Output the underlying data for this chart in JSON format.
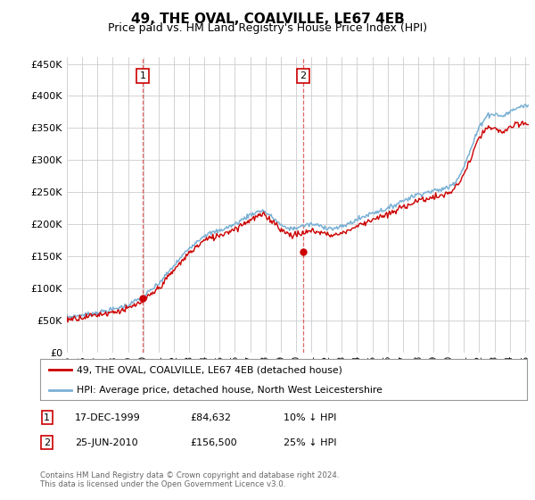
{
  "title": "49, THE OVAL, COALVILLE, LE67 4EB",
  "subtitle": "Price paid vs. HM Land Registry's House Price Index (HPI)",
  "title_fontsize": 11,
  "subtitle_fontsize": 9,
  "ylabel_ticks": [
    "£0",
    "£50K",
    "£100K",
    "£150K",
    "£200K",
    "£250K",
    "£300K",
    "£350K",
    "£400K",
    "£450K"
  ],
  "ytick_vals": [
    0,
    50000,
    100000,
    150000,
    200000,
    250000,
    300000,
    350000,
    400000,
    450000
  ],
  "ylim": [
    0,
    460000
  ],
  "xlim_start": 1995.0,
  "xlim_end": 2025.3,
  "price_paid_color": "#cc0000",
  "hpi_color": "#7ab0d4",
  "legend_label_price": "49, THE OVAL, COALVILLE, LE67 4EB (detached house)",
  "legend_label_hpi": "HPI: Average price, detached house, North West Leicestershire",
  "sale1_x": 1999.96,
  "sale1_y": 84632,
  "sale1_label": "1",
  "sale2_x": 2010.48,
  "sale2_y": 156500,
  "sale2_label": "2",
  "footer": "Contains HM Land Registry data © Crown copyright and database right 2024.\nThis data is licensed under the Open Government Licence v3.0.",
  "table_rows": [
    [
      "1",
      "17-DEC-1999",
      "£84,632",
      "10% ↓ HPI"
    ],
    [
      "2",
      "25-JUN-2010",
      "£156,500",
      "25% ↓ HPI"
    ]
  ],
  "background_color": "#ffffff",
  "grid_color": "#cccccc",
  "hpi_anchors": [
    [
      1995.0,
      55000
    ],
    [
      1996.0,
      58000
    ],
    [
      1997.0,
      62000
    ],
    [
      1998.0,
      67000
    ],
    [
      1999.0,
      74000
    ],
    [
      2000.0,
      87000
    ],
    [
      2001.0,
      107000
    ],
    [
      2002.0,
      135000
    ],
    [
      2003.0,
      163000
    ],
    [
      2004.0,
      183000
    ],
    [
      2005.0,
      190000
    ],
    [
      2006.0,
      200000
    ],
    [
      2007.0,
      215000
    ],
    [
      2007.8,
      222000
    ],
    [
      2008.5,
      210000
    ],
    [
      2009.2,
      195000
    ],
    [
      2009.8,
      193000
    ],
    [
      2010.5,
      198000
    ],
    [
      2011.0,
      200000
    ],
    [
      2011.5,
      198000
    ],
    [
      2012.0,
      195000
    ],
    [
      2012.5,
      193000
    ],
    [
      2013.0,
      196000
    ],
    [
      2014.0,
      207000
    ],
    [
      2015.0,
      218000
    ],
    [
      2016.0,
      224000
    ],
    [
      2017.0,
      237000
    ],
    [
      2018.0,
      247000
    ],
    [
      2019.0,
      252000
    ],
    [
      2019.5,
      254000
    ],
    [
      2020.0,
      258000
    ],
    [
      2020.5,
      268000
    ],
    [
      2021.0,
      290000
    ],
    [
      2021.5,
      320000
    ],
    [
      2022.0,
      352000
    ],
    [
      2022.5,
      370000
    ],
    [
      2023.0,
      372000
    ],
    [
      2023.5,
      368000
    ],
    [
      2024.0,
      375000
    ],
    [
      2024.5,
      382000
    ],
    [
      2025.0,
      385000
    ]
  ],
  "pp_anchors": [
    [
      1995.0,
      52000
    ],
    [
      1996.0,
      55000
    ],
    [
      1997.0,
      59000
    ],
    [
      1998.0,
      63000
    ],
    [
      1999.0,
      68000
    ],
    [
      2000.0,
      80000
    ],
    [
      2001.0,
      100000
    ],
    [
      2002.0,
      128000
    ],
    [
      2003.0,
      155000
    ],
    [
      2004.0,
      175000
    ],
    [
      2005.0,
      183000
    ],
    [
      2006.0,
      193000
    ],
    [
      2007.0,
      207000
    ],
    [
      2007.8,
      215000
    ],
    [
      2008.5,
      205000
    ],
    [
      2009.2,
      188000
    ],
    [
      2009.8,
      183000
    ],
    [
      2010.5,
      186000
    ],
    [
      2011.0,
      190000
    ],
    [
      2011.5,
      188000
    ],
    [
      2012.0,
      185000
    ],
    [
      2012.5,
      183000
    ],
    [
      2013.0,
      186000
    ],
    [
      2014.0,
      197000
    ],
    [
      2015.0,
      208000
    ],
    [
      2016.0,
      214000
    ],
    [
      2017.0,
      227000
    ],
    [
      2018.0,
      237000
    ],
    [
      2019.0,
      242000
    ],
    [
      2019.5,
      244000
    ],
    [
      2020.0,
      248000
    ],
    [
      2020.5,
      258000
    ],
    [
      2021.0,
      278000
    ],
    [
      2021.5,
      305000
    ],
    [
      2022.0,
      335000
    ],
    [
      2022.5,
      350000
    ],
    [
      2023.0,
      348000
    ],
    [
      2023.5,
      344000
    ],
    [
      2024.0,
      350000
    ],
    [
      2024.5,
      355000
    ],
    [
      2025.0,
      357000
    ]
  ]
}
